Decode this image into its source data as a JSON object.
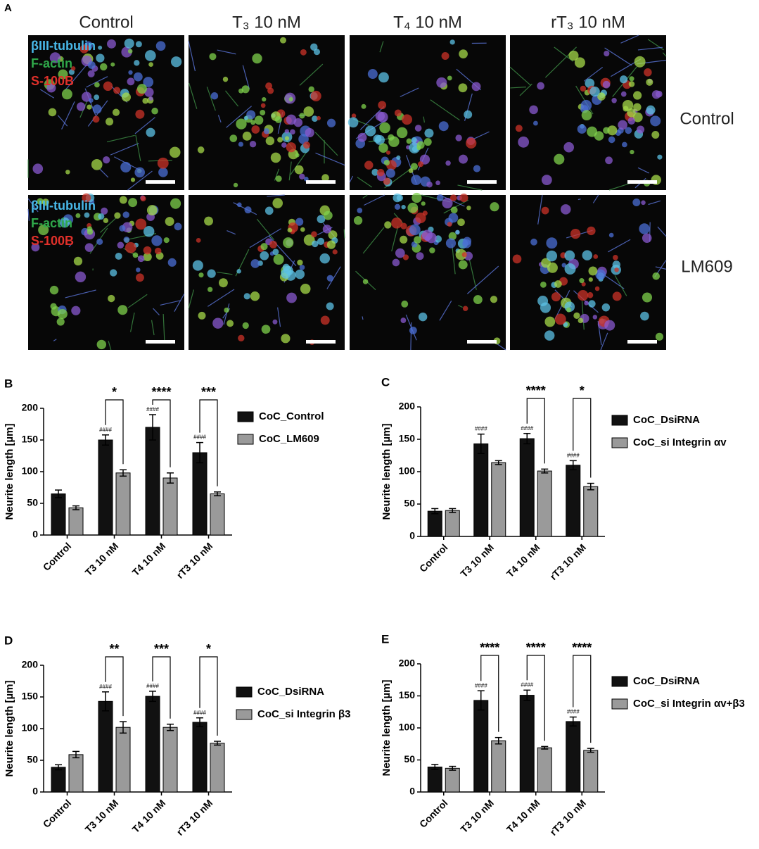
{
  "panel_a": {
    "label": "A",
    "columns": [
      "Control",
      "T₃ 10 nM",
      "T₄ 10 nM",
      "rT₃ 10 nM"
    ],
    "rows": [
      "Control",
      "LM609"
    ],
    "stain_labels": [
      [
        "βIII-tubulin",
        "F-actin",
        "S-100B"
      ],
      [
        "βIII-tubulin",
        "F-actin",
        "S-100B"
      ]
    ]
  },
  "chart_data": [
    {
      "type": "bar",
      "panel_label": "B",
      "ylabel": "Neurite length [µm]",
      "categories": [
        "Control",
        "T3 10 nM",
        "T4 10 nM",
        "rT3 10 nM"
      ],
      "series": [
        {
          "name": "CoC_Control",
          "color": "#111111",
          "values": [
            65,
            150,
            170,
            130
          ],
          "errors": [
            6,
            8,
            20,
            16
          ]
        },
        {
          "name": "CoC_LM609",
          "color": "#9a9a9a",
          "values": [
            43,
            98,
            90,
            65
          ],
          "errors": [
            3,
            5,
            8,
            3
          ]
        }
      ],
      "significance": [
        null,
        "*",
        "****",
        "***"
      ],
      "hash_labels": [
        null,
        "####",
        "####",
        "####"
      ],
      "ylim": [
        0,
        200
      ],
      "yticks": [
        0,
        50,
        100,
        150,
        200
      ]
    },
    {
      "type": "bar",
      "panel_label": "C",
      "ylabel": "Neurite length [µm]",
      "categories": [
        "Control",
        "T3 10 nM",
        "T4 10 nM",
        "rT3 10 nM"
      ],
      "series": [
        {
          "name": "CoC_DsiRNA",
          "color": "#111111",
          "values": [
            39,
            143,
            151,
            110
          ],
          "errors": [
            4,
            15,
            8,
            7
          ]
        },
        {
          "name": "CoC_si Integrin αv",
          "color": "#9a9a9a",
          "values": [
            40,
            114,
            101,
            77
          ],
          "errors": [
            3,
            3,
            3,
            5
          ]
        }
      ],
      "significance": [
        null,
        null,
        "****",
        "*"
      ],
      "hash_labels": [
        null,
        "####",
        "####",
        "####"
      ],
      "ylim": [
        0,
        200
      ],
      "yticks": [
        0,
        50,
        100,
        150,
        200
      ]
    },
    {
      "type": "bar",
      "panel_label": "D",
      "ylabel": "Neurite length [µm]",
      "categories": [
        "Control",
        "T3 10 nM",
        "T4 10 nM",
        "rT3 10 nM"
      ],
      "series": [
        {
          "name": "CoC_DsiRNA",
          "color": "#111111",
          "values": [
            39,
            143,
            151,
            110
          ],
          "errors": [
            4,
            15,
            8,
            7
          ]
        },
        {
          "name": "CoC_si Integrin β3",
          "color": "#9a9a9a",
          "values": [
            59,
            102,
            102,
            77
          ],
          "errors": [
            5,
            9,
            5,
            3
          ]
        }
      ],
      "significance": [
        null,
        "**",
        "***",
        "*"
      ],
      "hash_labels": [
        null,
        "####",
        "####",
        "####"
      ],
      "ylim": [
        0,
        200
      ],
      "yticks": [
        0,
        50,
        100,
        150,
        200
      ]
    },
    {
      "type": "bar",
      "panel_label": "E",
      "ylabel": "Neurite length [µm]",
      "categories": [
        "Control",
        "T3 10 nM",
        "T4 10 nM",
        "rT3 10 nM"
      ],
      "series": [
        {
          "name": "CoC_DsiRNA",
          "color": "#111111",
          "values": [
            39,
            143,
            151,
            110
          ],
          "errors": [
            4,
            15,
            8,
            7
          ]
        },
        {
          "name": "CoC_si Integrin αv+β3",
          "color": "#9a9a9a",
          "values": [
            37,
            80,
            69,
            65
          ],
          "errors": [
            3,
            5,
            2,
            3
          ]
        }
      ],
      "significance": [
        null,
        "****",
        "****",
        "****"
      ],
      "hash_labels": [
        null,
        "####",
        "####",
        "####"
      ],
      "ylim": [
        0,
        200
      ],
      "yticks": [
        0,
        50,
        100,
        150,
        200
      ]
    }
  ]
}
